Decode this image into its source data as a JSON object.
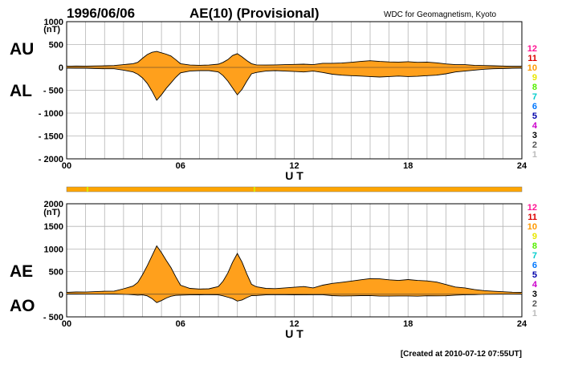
{
  "header": {
    "date": "1996/06/06",
    "title": "AE(10) (Provisional)",
    "source": "WDC for Geomagnetism, Kyoto"
  },
  "footer": {
    "created": "[Created at 2010-07-12 07:55UT]"
  },
  "station_count_legend": {
    "labels": [
      "12",
      "11",
      "10",
      "9",
      "8",
      "7",
      "6",
      "5",
      "4",
      "3",
      "2",
      "1"
    ],
    "colors": [
      "#ff1493",
      "#dd0000",
      "#ff9900",
      "#e8e800",
      "#55ee00",
      "#00cccc",
      "#0077ff",
      "#0000aa",
      "#cc00cc",
      "#000000",
      "#555555",
      "#bbbbbb"
    ]
  },
  "colors": {
    "fill": "#ffa01c",
    "line": "#000000",
    "grid": "#b4b4b4",
    "bar": "#ffa500",
    "bar_marker": "#d8e800"
  },
  "chart_data": [
    {
      "type": "area",
      "name": "AU/AL",
      "left_labels": [
        "AU",
        "AL"
      ],
      "unit": "(nT)",
      "xlabel": "U T",
      "xticks": [
        "00",
        "06",
        "12",
        "18",
        "24"
      ],
      "yticks": [
        "1000",
        "500",
        "0",
        "- 500",
        "- 1000",
        "- 1500",
        "- 2000"
      ],
      "xlim": [
        0,
        24
      ],
      "ylim": [
        -2000,
        1000
      ],
      "x": [
        0,
        0.5,
        1,
        1.5,
        2,
        2.5,
        3,
        3.25,
        3.5,
        3.75,
        4,
        4.25,
        4.5,
        4.75,
        5,
        5.25,
        5.5,
        5.75,
        6,
        6.5,
        7,
        7.5,
        8,
        8.25,
        8.5,
        8.75,
        9,
        9.25,
        9.5,
        9.75,
        10,
        10.5,
        11,
        11.5,
        12,
        12.5,
        13,
        13.5,
        14,
        14.5,
        15,
        15.5,
        16,
        16.5,
        17,
        17.5,
        18,
        18.5,
        19,
        19.5,
        20,
        20.5,
        21,
        21.5,
        22,
        22.5,
        23,
        23.5,
        24
      ],
      "series": [
        {
          "name": "AU",
          "values": [
            25,
            30,
            28,
            32,
            35,
            40,
            60,
            70,
            80,
            110,
            200,
            280,
            330,
            350,
            320,
            290,
            250,
            170,
            80,
            50,
            45,
            50,
            70,
            110,
            170,
            260,
            300,
            230,
            150,
            80,
            55,
            50,
            55,
            60,
            65,
            70,
            60,
            90,
            90,
            95,
            110,
            130,
            145,
            130,
            120,
            115,
            125,
            110,
            115,
            100,
            75,
            60,
            60,
            45,
            40,
            35,
            30,
            25,
            25
          ]
        },
        {
          "name": "AL",
          "values": [
            -15,
            -20,
            -20,
            -25,
            -30,
            -30,
            -60,
            -80,
            -100,
            -150,
            -230,
            -350,
            -520,
            -720,
            -600,
            -460,
            -340,
            -220,
            -120,
            -80,
            -70,
            -70,
            -100,
            -180,
            -300,
            -450,
            -600,
            -480,
            -300,
            -140,
            -110,
            -80,
            -70,
            -80,
            -90,
            -100,
            -80,
            -110,
            -150,
            -170,
            -180,
            -190,
            -200,
            -210,
            -200,
            -190,
            -200,
            -195,
            -180,
            -170,
            -140,
            -100,
            -80,
            -60,
            -40,
            -30,
            -25,
            -20,
            -15
          ]
        }
      ]
    },
    {
      "type": "area",
      "name": "AE/AO",
      "left_labels": [
        "AE",
        "AO"
      ],
      "unit": "(nT)",
      "xlabel": "U T",
      "xticks": [
        "00",
        "06",
        "12",
        "18",
        "24"
      ],
      "yticks": [
        "2000",
        "1500",
        "1000",
        "500",
        "0",
        "- 500"
      ],
      "xlim": [
        0,
        24
      ],
      "ylim": [
        -500,
        2000
      ],
      "x": [
        0,
        0.5,
        1,
        1.5,
        2,
        2.5,
        3,
        3.25,
        3.5,
        3.75,
        4,
        4.25,
        4.5,
        4.75,
        5,
        5.25,
        5.5,
        5.75,
        6,
        6.5,
        7,
        7.5,
        8,
        8.25,
        8.5,
        8.75,
        9,
        9.25,
        9.5,
        9.75,
        10,
        10.5,
        11,
        11.5,
        12,
        12.5,
        13,
        13.5,
        14,
        14.5,
        15,
        15.5,
        16,
        16.5,
        17,
        17.5,
        18,
        18.5,
        19,
        19.5,
        20,
        20.5,
        21,
        21.5,
        22,
        22.5,
        23,
        23.5,
        24
      ],
      "series": [
        {
          "name": "AE",
          "values": [
            40,
            50,
            48,
            57,
            65,
            70,
            120,
            150,
            180,
            260,
            430,
            630,
            850,
            1070,
            920,
            750,
            590,
            390,
            200,
            130,
            115,
            120,
            170,
            290,
            470,
            710,
            900,
            710,
            450,
            220,
            165,
            130,
            125,
            140,
            155,
            170,
            140,
            200,
            240,
            265,
            290,
            320,
            345,
            340,
            320,
            305,
            325,
            305,
            295,
            270,
            215,
            160,
            140,
            105,
            80,
            65,
            55,
            45,
            40
          ]
        },
        {
          "name": "AO",
          "values": [
            5,
            5,
            4,
            4,
            3,
            5,
            0,
            -5,
            -10,
            -20,
            -15,
            -35,
            -95,
            -185,
            -140,
            -85,
            -45,
            -25,
            -20,
            -15,
            -12,
            -10,
            -15,
            -35,
            -65,
            -95,
            -150,
            -125,
            -75,
            -30,
            -28,
            -15,
            -8,
            -10,
            -12,
            -15,
            -10,
            -10,
            -30,
            -38,
            -35,
            -30,
            -28,
            -40,
            -40,
            -38,
            -38,
            -43,
            -33,
            -35,
            -33,
            -20,
            -10,
            -8,
            0,
            2,
            3,
            3,
            5
          ]
        }
      ]
    }
  ]
}
